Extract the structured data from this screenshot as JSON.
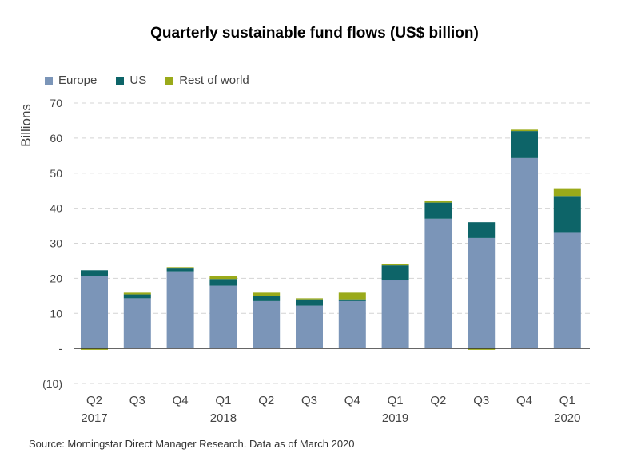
{
  "chart_data": {
    "type": "bar",
    "stacked": true,
    "title": "Quarterly sustainable fund flows (US$ billion)",
    "ylabel": "Billions",
    "ylim": [
      -10,
      70
    ],
    "yticks": [
      {
        "value": 70,
        "label": "70"
      },
      {
        "value": 60,
        "label": "60"
      },
      {
        "value": 50,
        "label": "50"
      },
      {
        "value": 40,
        "label": "40"
      },
      {
        "value": 30,
        "label": "30"
      },
      {
        "value": 20,
        "label": "20"
      },
      {
        "value": 10,
        "label": "10"
      },
      {
        "value": 0,
        "label": "-"
      },
      {
        "value": -10,
        "label": "(10)"
      }
    ],
    "categories": [
      "Q2 2017",
      "Q3 2017",
      "Q4 2017",
      "Q1 2018",
      "Q2 2018",
      "Q3 2018",
      "Q4 2018",
      "Q1 2019",
      "Q2 2019",
      "Q3 2019",
      "Q4 2019",
      "Q1 2020"
    ],
    "category_labels": [
      {
        "quarter": "Q2",
        "year": "2017"
      },
      {
        "quarter": "Q3",
        "year": ""
      },
      {
        "quarter": "Q4",
        "year": ""
      },
      {
        "quarter": "Q1",
        "year": "2018"
      },
      {
        "quarter": "Q2",
        "year": ""
      },
      {
        "quarter": "Q3",
        "year": ""
      },
      {
        "quarter": "Q4",
        "year": ""
      },
      {
        "quarter": "Q1",
        "year": "2019"
      },
      {
        "quarter": "Q2",
        "year": ""
      },
      {
        "quarter": "Q3",
        "year": ""
      },
      {
        "quarter": "Q4",
        "year": ""
      },
      {
        "quarter": "Q1",
        "year": "2020"
      }
    ],
    "series": [
      {
        "name": "Europe",
        "color": "#7b95b8",
        "values": [
          20.6,
          14.3,
          22.0,
          17.9,
          13.5,
          12.2,
          13.5,
          19.4,
          37.0,
          31.5,
          54.3,
          33.2
        ]
      },
      {
        "name": "US",
        "color": "#0d6468",
        "values": [
          1.7,
          1.1,
          0.8,
          1.9,
          1.5,
          1.8,
          0.5,
          4.3,
          4.6,
          4.5,
          7.7,
          10.3
        ]
      },
      {
        "name": "Rest of world",
        "color": "#9aaa1a",
        "values": [
          -0.4,
          0.5,
          0.4,
          0.8,
          0.9,
          0.3,
          1.9,
          0.4,
          0.6,
          -0.4,
          0.4,
          2.2
        ]
      }
    ],
    "grid": true,
    "legend_position": "top-left"
  },
  "source": "Source: Morningstar Direct Manager Research. Data as of March 2020"
}
